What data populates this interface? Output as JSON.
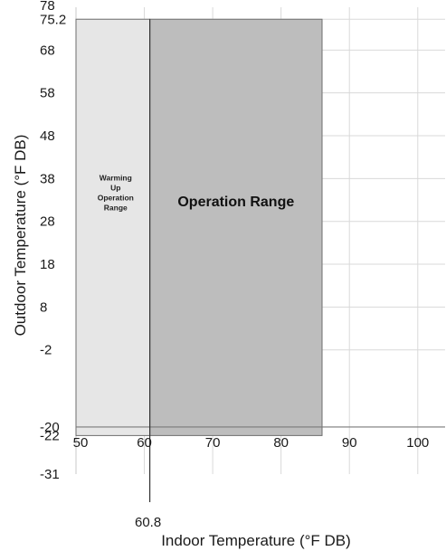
{
  "chart_data": {
    "type": "area",
    "title": "",
    "xlabel": "Indoor Temperature (°F DB)",
    "ylabel": "Outdoor Temperature (°F DB)",
    "xlim": [
      50,
      104
    ],
    "ylim": [
      -31,
      78
    ],
    "grid": true,
    "x_ticks": [
      50,
      60,
      70,
      80,
      90,
      100
    ],
    "x_tick_labels": [
      "50",
      "60",
      "70",
      "80",
      "90",
      "100"
    ],
    "y_ticks": [
      75.2,
      68,
      58,
      48,
      38,
      28,
      18,
      8,
      -2
    ],
    "y_tick_labels": [
      "75.2",
      "68",
      "58",
      "48",
      "38",
      "28",
      "18",
      "8",
      "-2"
    ],
    "y_extra_labels": [
      {
        "value": 78,
        "text": "78"
      },
      {
        "value": -20,
        "text": "-20"
      },
      {
        "value": -22,
        "text": "-22"
      },
      {
        "value": -31,
        "text": "-31"
      }
    ],
    "x_extra_labels": [
      {
        "value": 60.8,
        "text": "60.8"
      }
    ],
    "regions": [
      {
        "name": "Warming Up Operation Range",
        "x_range": [
          50,
          60.8
        ],
        "y_range": [
          -22,
          75.2
        ],
        "color": "#e6e6e6"
      },
      {
        "name": "Operation Range",
        "x_range": [
          60.8,
          86
        ],
        "y_range": [
          -22,
          75.2
        ],
        "color": "#bdbdbd"
      }
    ],
    "region_labels": [
      {
        "lines": [
          "Warming",
          "Up",
          "Operation",
          "Range"
        ],
        "style": "small"
      },
      {
        "lines": [
          "Operation Range"
        ],
        "style": "big"
      }
    ],
    "reference_lines": [
      {
        "orientation": "horizontal",
        "value": -20
      },
      {
        "orientation": "vertical",
        "value": 60.8
      }
    ]
  }
}
